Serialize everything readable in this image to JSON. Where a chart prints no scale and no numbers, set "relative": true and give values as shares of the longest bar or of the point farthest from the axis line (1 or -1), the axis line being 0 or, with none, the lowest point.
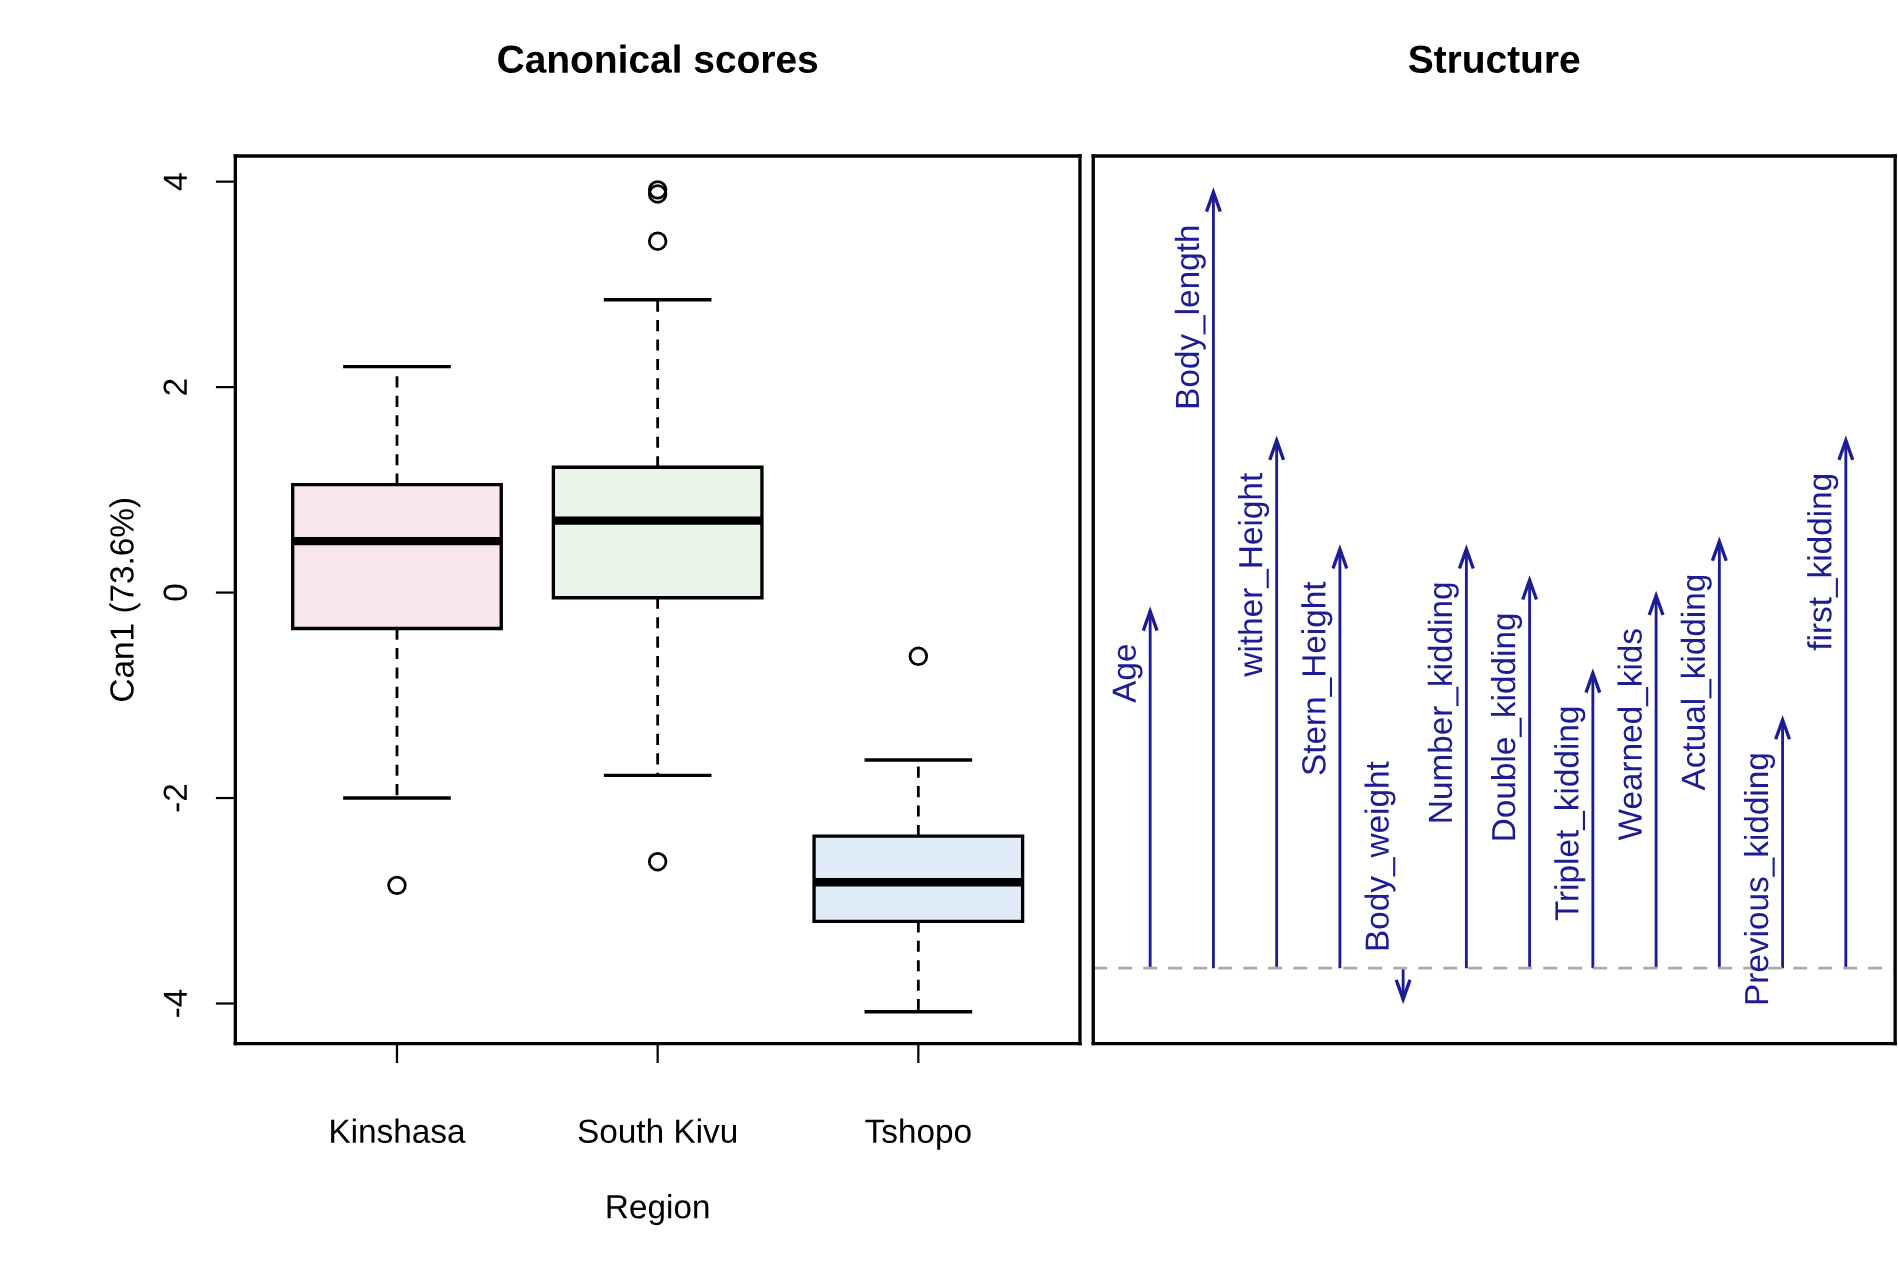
{
  "chart_data": [
    {
      "type": "box",
      "title": "Canonical scores",
      "xlabel": "Region",
      "ylabel": "Can1 (73.6%)",
      "categories": [
        "Kinshasa",
        "South Kivu",
        "Tshopo"
      ],
      "colors": [
        "#f9e6ea",
        "#e9f5e9",
        "#dfecf8"
      ],
      "ylim": [
        -4.39,
        4.25
      ],
      "yticks": [
        -4,
        -2,
        0,
        2,
        4
      ],
      "grid": false,
      "boxes": [
        {
          "low": -2.0,
          "q1": -0.35,
          "median": 0.5,
          "q3": 1.05,
          "high": 2.2,
          "outliers": [
            -2.85
          ]
        },
        {
          "low": -1.78,
          "q1": -0.05,
          "median": 0.7,
          "q3": 1.22,
          "high": 2.85,
          "outliers": [
            3.42,
            3.88,
            3.92,
            -2.62
          ]
        },
        {
          "low": -4.08,
          "q1": -3.2,
          "median": -2.82,
          "q3": -2.37,
          "high": -1.63,
          "outliers": [
            -0.62
          ]
        }
      ]
    },
    {
      "type": "bar",
      "title": "Structure",
      "relative": true,
      "color": "#1c1c94",
      "categories": [
        "Age",
        "Body_length",
        "wither_Height",
        "Stern_Height",
        "Body_weight",
        "Number_kidding",
        "Double_kidding",
        "Triplet_kidding",
        "Wearned_kids",
        "Actual_kidding",
        "Previous_kidding",
        "first_kidding"
      ],
      "ref_lines": [
        {
          "axis": "y",
          "value": 0,
          "color": "#aaaaaa",
          "line_style": "dashed"
        }
      ],
      "values": [
        0.46,
        1,
        0.68,
        0.54,
        -0.04,
        0.54,
        0.5,
        0.38,
        0.48,
        0.55,
        0.32,
        0.68
      ]
    }
  ]
}
